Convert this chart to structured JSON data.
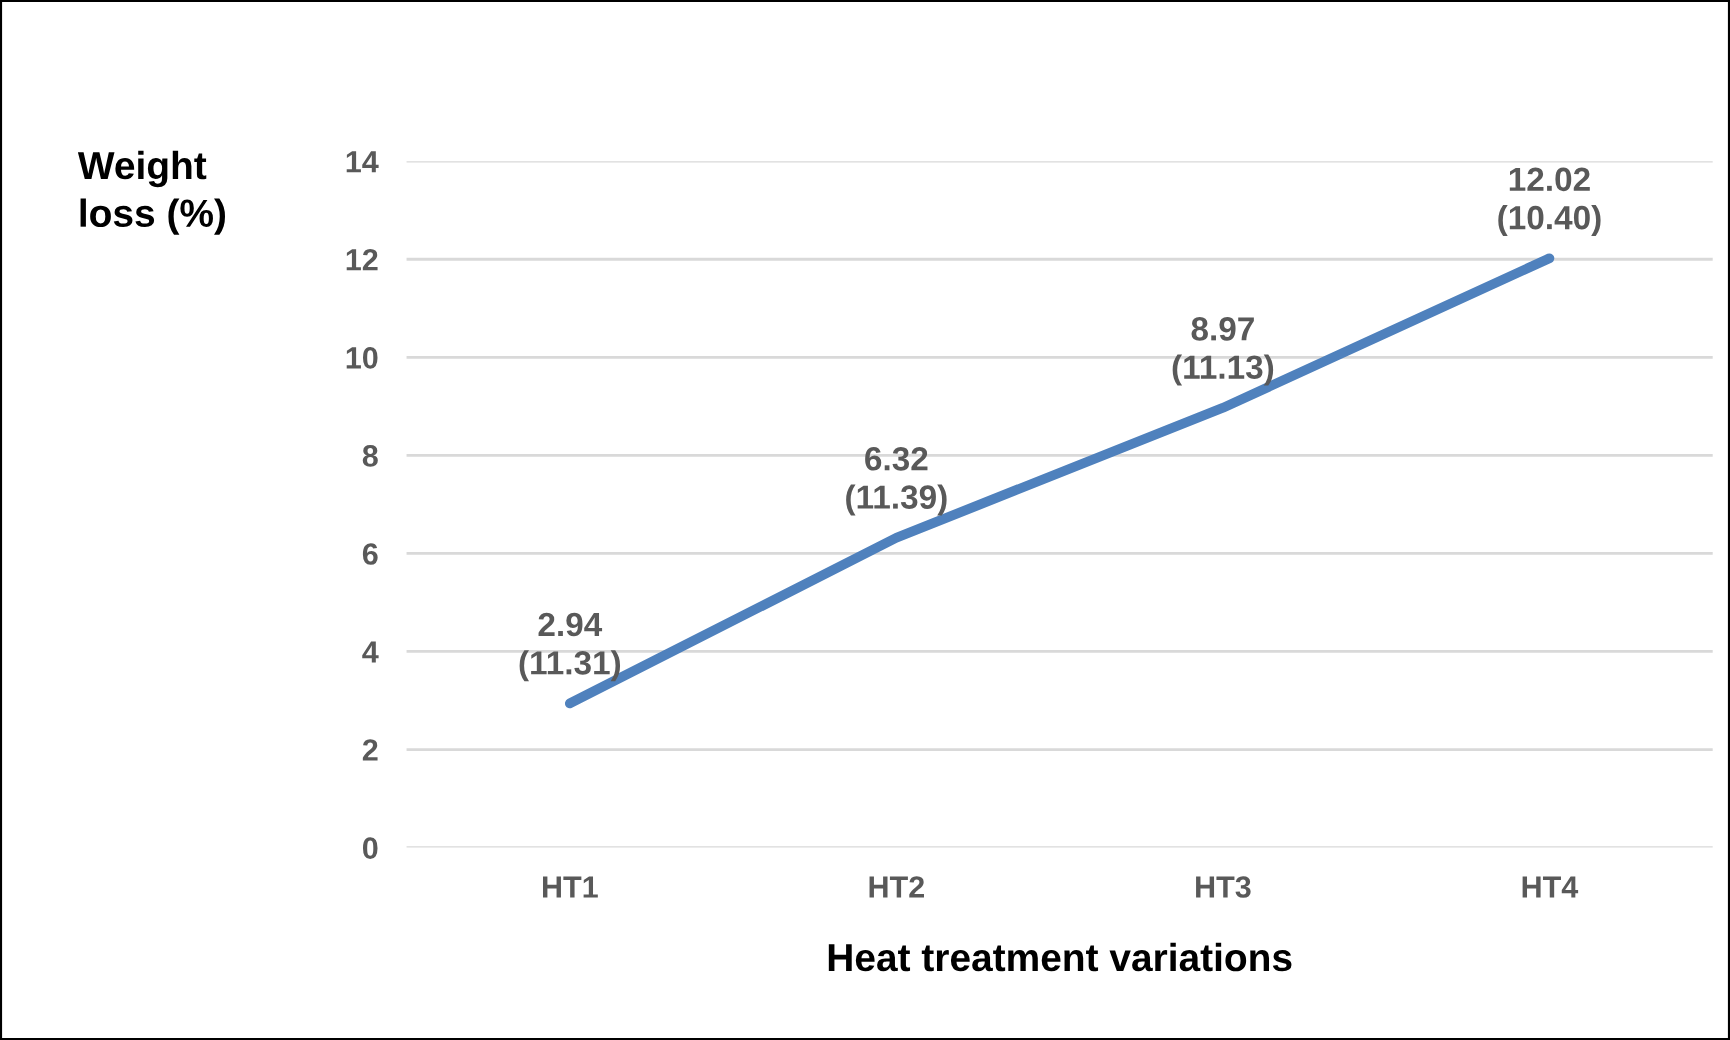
{
  "chart_data": {
    "type": "line",
    "xlabel": "Heat treatment variations",
    "ylabel": "Weight\nloss (%)",
    "categories": [
      "HT1",
      "HT2",
      "HT3",
      "HT4"
    ],
    "series": [
      {
        "color": "#4f81bd",
        "values": [
          2.94,
          6.32,
          8.97,
          12.02
        ],
        "value_labels": [
          "2.94\n(11.31)",
          "6.32\n(11.39)",
          "8.97\n(11.13)",
          "12.02\n(10.40)"
        ]
      }
    ],
    "ylim": [
      0,
      14
    ],
    "yticks": [
      0,
      2,
      4,
      6,
      8,
      10,
      12,
      14
    ],
    "grid": "y",
    "legend": false,
    "marker": "none",
    "line_style": "solid"
  }
}
